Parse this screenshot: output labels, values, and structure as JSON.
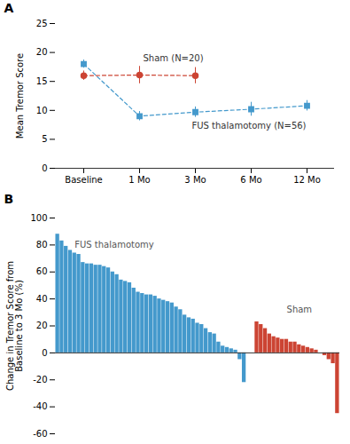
{
  "chart_data": [
    {
      "type": "line",
      "title": "A",
      "ylabel": "Mean Tremor Score",
      "categories": [
        "Baseline",
        "1 Mo",
        "3 Mo",
        "6 Mo",
        "12 Mo"
      ],
      "series": [
        {
          "name": "FUS thalamotomy (N=56)",
          "color": "#4499cc",
          "marker": "square",
          "line_style": "dashed",
          "values": [
            18.0,
            9.0,
            9.7,
            10.2,
            10.8
          ],
          "yerr": [
            0.7,
            0.8,
            0.9,
            1.2,
            0.9
          ]
        },
        {
          "name": "Sham (N=20)",
          "color": "#cc4433",
          "marker": "circle",
          "line_style": "dashed",
          "values": [
            16.0,
            16.1,
            16.0,
            null,
            null
          ],
          "yerr": [
            0.8,
            1.5,
            1.4,
            null,
            null
          ]
        }
      ],
      "ylim": [
        0,
        25
      ],
      "yticks": [
        0,
        5,
        10,
        15,
        20,
        25
      ],
      "grid": false
    },
    {
      "type": "bar",
      "title": "B",
      "ylabel": "Change in Tremor Score from\nBaseline to 3 Mo (%)",
      "series": [
        {
          "name": "FUS thalamotomy",
          "color": "#4499cc",
          "values": [
            88,
            83,
            79,
            76,
            74,
            73,
            67,
            66,
            66,
            65,
            65,
            64,
            63,
            60,
            58,
            54,
            53,
            52,
            48,
            45,
            44,
            43,
            43,
            42,
            40,
            39,
            38,
            37,
            34,
            32,
            28,
            26,
            25,
            22,
            21,
            18,
            15,
            14,
            8,
            5,
            4,
            3,
            2,
            -5,
            -22
          ]
        },
        {
          "name": "Sham",
          "color": "#cc4433",
          "values": [
            23,
            21,
            18,
            14,
            12,
            11,
            10,
            10,
            8,
            8,
            6,
            5,
            4,
            3,
            2,
            0,
            -2,
            -5,
            -8,
            -45
          ]
        }
      ],
      "ylim": [
        -60,
        100
      ],
      "yticks": [
        -60,
        -40,
        -20,
        0,
        20,
        40,
        60,
        80,
        100
      ],
      "grid": false,
      "tick_labels": "y"
    }
  ]
}
